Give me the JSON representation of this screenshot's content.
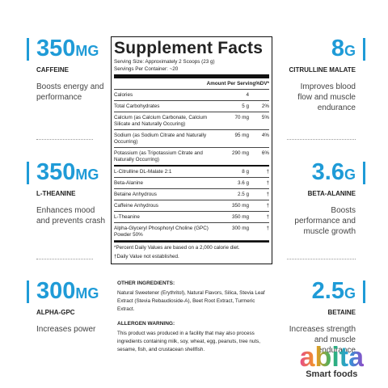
{
  "left": [
    {
      "amount": "350",
      "unit": "MG",
      "name": "CAFFEINE",
      "description": "Boosts energy and performance"
    },
    {
      "amount": "350",
      "unit": "MG",
      "name": "L-THEANINE",
      "description": "Enhances mood and prevents crash"
    },
    {
      "amount": "300",
      "unit": "MG",
      "name": "ALPHA-GPC",
      "description": "Increases power"
    }
  ],
  "right": [
    {
      "amount": "8",
      "unit": "G",
      "name": "CITRULLINE MALATE",
      "description": "Improves blood flow and muscle endurance"
    },
    {
      "amount": "3.6",
      "unit": "G",
      "name": "BETA-ALANINE",
      "description": "Boosts performance and muscle growth"
    },
    {
      "amount": "2.5",
      "unit": "G",
      "name": "BETAINE",
      "description": "Increases strength and muscle endurance"
    }
  ],
  "facts": {
    "title": "Supplement Facts",
    "serving_size": "Serving Size: Approximately 2 Scoops (23 g)",
    "servings": "Servings Per Container: ~20",
    "header": {
      "amount": "Amount Per Serving",
      "dv": "%DV*"
    },
    "rows": [
      {
        "name": "Calories",
        "amount": "4"
      },
      {
        "name": "Total Carbohydrates",
        "amount": "5 g",
        "dv": "2%"
      },
      {
        "name": "Calcium (as Calcium Carbonate, Calcium Silicate and Naturally Occuring)",
        "amount": "70 mg",
        "dv": "5%"
      },
      {
        "name": "Sodium (as Sodium Citrate and Naturally Occurring)",
        "amount": "95 mg",
        "dv": "4%"
      },
      {
        "name": "Potassium (as Tripotassium Citrate and Naturally Occurring)",
        "amount": "290 mg",
        "dv": "6%"
      },
      {
        "name": "L-Citrulline DL-Malate 2:1",
        "amount": "8 g",
        "dv": "†"
      },
      {
        "name": "Beta-Alanine",
        "amount": "3.6 g",
        "dv": "†"
      },
      {
        "name": "Betaine Anhydrous",
        "amount": "2.5 g",
        "dv": "†"
      },
      {
        "name": "Caffeine Anhydrous",
        "amount": "350 mg",
        "dv": "†"
      },
      {
        "name": "L-Theanine",
        "amount": "350 mg",
        "dv": "†"
      },
      {
        "name": "Alpha-Glyceryl Phosphoryl Choline (GPC) Powder 50%",
        "amount": "300 mg",
        "dv": "†"
      }
    ],
    "footnotes": [
      "*Percent Daily Values are based on a 2,000 calorie diet.",
      "†Daily Value not established."
    ]
  },
  "other_ingredients": {
    "heading": "OTHER INGREDIENTS:",
    "text": "Natural Sweetener (Erythritol), Natural Flavors, Silica, Stevia Leaf Extract (Stevia Rebaudioside-A), Beet Root Extract, Turmeric Extract."
  },
  "allergen": {
    "heading": "ALLERGEN WARNING:",
    "text": "This product was produced in a facility that may also process ingredients containing milk, soy, wheat, egg, peanuts, tree nuts, sesame, fish, and crustacean shellfish."
  },
  "brand": {
    "name": "abita",
    "tagline": "Smart foods"
  }
}
